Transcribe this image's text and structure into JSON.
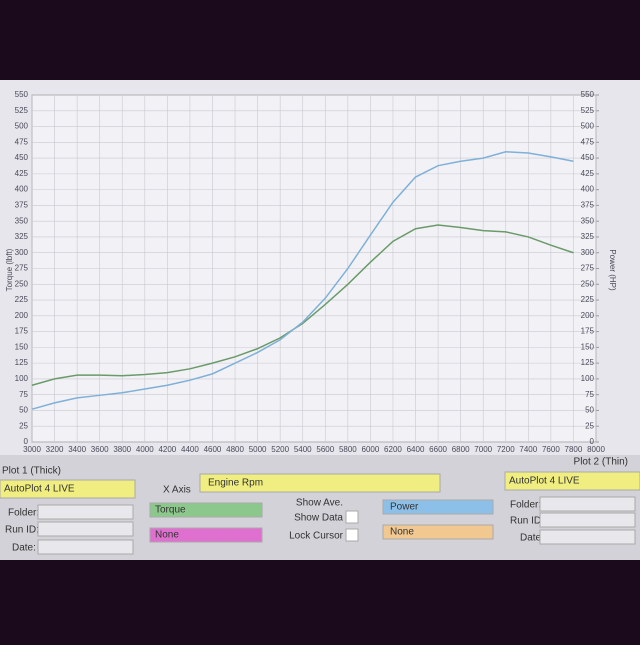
{
  "chart_data": {
    "type": "line",
    "y_label": "Torque (lbft)",
    "y2_label": "Power (HP)",
    "x": [
      3000,
      3200,
      3400,
      3600,
      3800,
      4000,
      4200,
      4400,
      4600,
      4800,
      5000,
      5200,
      5400,
      5600,
      5800,
      6000,
      6200,
      6400,
      6600,
      6800,
      7000,
      7200,
      7400,
      7600,
      7800
    ],
    "series": [
      {
        "name": "Torque",
        "color": "#6a9a6a",
        "values": [
          90,
          100,
          106,
          106,
          105,
          107,
          110,
          116,
          125,
          135,
          148,
          165,
          188,
          218,
          250,
          285,
          318,
          338,
          344,
          340,
          335,
          333,
          325,
          312,
          300
        ]
      },
      {
        "name": "Power",
        "color": "#7fb0d8",
        "axis": "y2",
        "values": [
          52,
          62,
          70,
          74,
          78,
          84,
          90,
          98,
          108,
          125,
          142,
          162,
          190,
          228,
          275,
          328,
          380,
          420,
          438,
          445,
          450,
          460,
          458,
          452,
          445
        ]
      }
    ],
    "xlim": [
      3000,
      8000
    ],
    "xticks": [
      3000,
      3200,
      3400,
      3600,
      3800,
      4000,
      4200,
      4400,
      4600,
      4800,
      5000,
      5200,
      5400,
      5600,
      5800,
      6000,
      6200,
      6400,
      6600,
      6800,
      7000,
      7200,
      7400,
      7600,
      7800,
      8000
    ],
    "ylim": [
      0,
      550
    ],
    "yticks": [
      0,
      25,
      50,
      75,
      100,
      125,
      150,
      175,
      200,
      225,
      250,
      275,
      300,
      325,
      350,
      375,
      400,
      425,
      450,
      475,
      500,
      525,
      550
    ],
    "y2lim": [
      0,
      550
    ],
    "y2ticks": [
      0,
      25,
      50,
      75,
      100,
      125,
      150,
      175,
      200,
      225,
      250,
      275,
      300,
      325,
      350,
      375,
      400,
      425,
      450,
      475,
      500,
      525,
      550
    ],
    "grid": true
  },
  "panel": {
    "plot1": {
      "title": "Plot 1 (Thick)",
      "run": "AutoPlot 4 LIVE",
      "folder": "Folder:",
      "run_id": "Run ID:",
      "date": "Date:"
    },
    "x_axis": {
      "label": "X Axis",
      "value": "Engine Rpm"
    },
    "left_channels": [
      "Torque",
      "None"
    ],
    "options": [
      "Show Ave.",
      "Show Data",
      "Lock Cursor"
    ],
    "right_channels": [
      "Power",
      "None"
    ],
    "plot2": {
      "title": "Plot 2 (Thin)",
      "run": "AutoPlot 4 LIVE",
      "folder": "Folder:",
      "run_id": "Run ID:",
      "date": "Date:"
    }
  }
}
